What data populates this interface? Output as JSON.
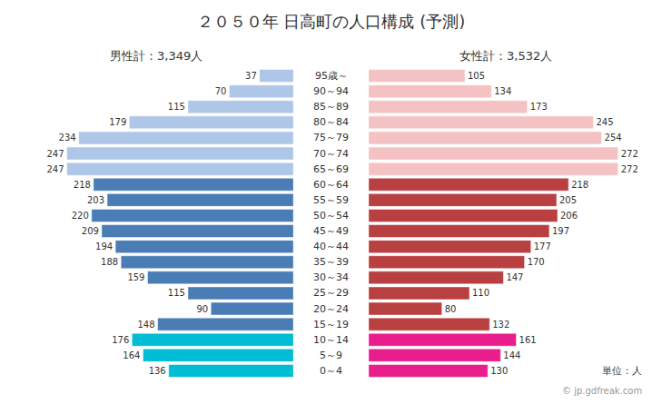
{
  "chart_data": {
    "type": "bar",
    "orientation": "horizontal",
    "title": "２０５０年 日高町の人口構成 (予測)",
    "categories": [
      "95歳～",
      "90～94",
      "85～89",
      "80～84",
      "75～79",
      "70～74",
      "65～69",
      "60～64",
      "55～59",
      "50～54",
      "45～49",
      "40～44",
      "35～39",
      "30～34",
      "25～29",
      "20～24",
      "15～19",
      "10～14",
      "5～9",
      "0～4"
    ],
    "series": [
      {
        "name": "男性計：3,349人",
        "values": [
          37,
          70,
          115,
          179,
          234,
          247,
          247,
          218,
          203,
          220,
          209,
          194,
          188,
          159,
          115,
          90,
          148,
          176,
          164,
          136
        ],
        "colors": [
          "#aec6e8",
          "#aec6e8",
          "#aec6e8",
          "#aec6e8",
          "#aec6e8",
          "#aec6e8",
          "#aec6e8",
          "#4a7db5",
          "#4a7db5",
          "#4a7db5",
          "#4a7db5",
          "#4a7db5",
          "#4a7db5",
          "#4a7db5",
          "#4a7db5",
          "#4a7db5",
          "#4a7db5",
          "#00bcd4",
          "#00bcd4",
          "#00bcd4"
        ]
      },
      {
        "name": "女性計：3,532人",
        "values": [
          105,
          134,
          173,
          245,
          254,
          272,
          272,
          218,
          205,
          206,
          197,
          177,
          170,
          147,
          110,
          80,
          132,
          161,
          144,
          130
        ],
        "colors": [
          "#f4c2c2",
          "#f4c2c2",
          "#f4c2c2",
          "#f4c2c2",
          "#f4c2c2",
          "#f4c2c2",
          "#f4c2c2",
          "#b94040",
          "#b94040",
          "#b94040",
          "#b94040",
          "#b94040",
          "#b94040",
          "#b94040",
          "#b94040",
          "#b94040",
          "#b94040",
          "#e91e8c",
          "#e91e8c",
          "#e91e8c"
        ]
      }
    ],
    "xlim": [
      0,
      300
    ],
    "data_labels": true,
    "tick_labels": false,
    "grid": false,
    "annotations": [
      "単位：人",
      "© jp.gdfreak.com"
    ]
  }
}
